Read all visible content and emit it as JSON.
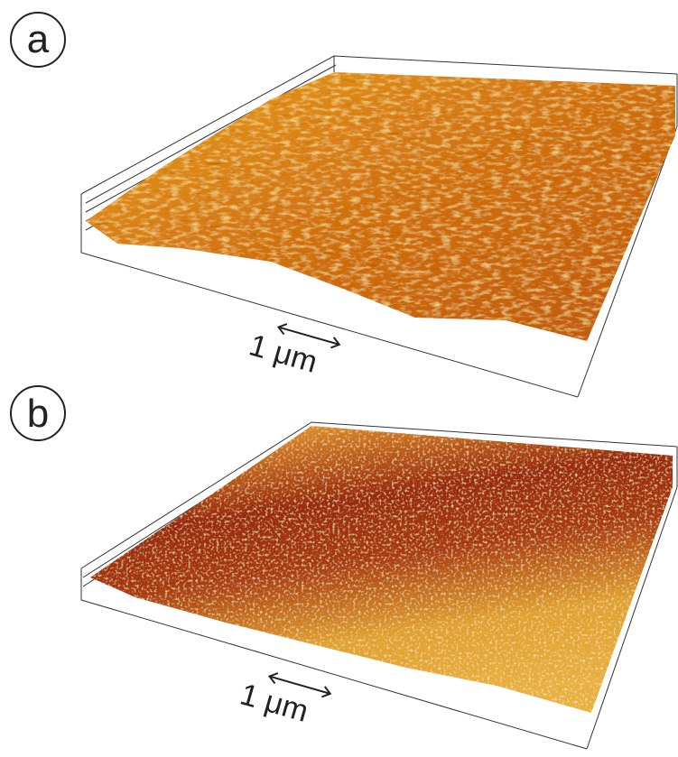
{
  "panels": [
    {
      "label": "a",
      "scale_bar": "1 μm"
    },
    {
      "label": "b",
      "scale_bar": "1 μm"
    }
  ]
}
